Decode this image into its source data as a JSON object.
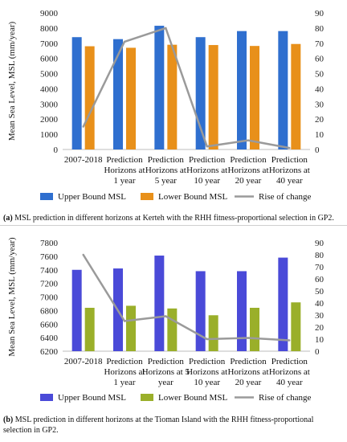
{
  "chart_data": [
    {
      "id": "a",
      "type": "bar+line",
      "categories": [
        [
          "2007-2018"
        ],
        [
          "Prediction",
          "Horizons at",
          "1 year"
        ],
        [
          "Prediction",
          "Horizons at",
          "5 year"
        ],
        [
          "Prediction",
          "Horizons at",
          "10 year"
        ],
        [
          "Prediction",
          "Horizons at",
          "20 year"
        ],
        [
          "Prediction",
          "Horizons at",
          "40 year"
        ]
      ],
      "ylabel": "Mean Sea Level, MSL (mm/year)",
      "ylim": [
        0,
        9000
      ],
      "yticks": [
        0,
        1000,
        2000,
        3000,
        4000,
        5000,
        6000,
        7000,
        8000,
        9000
      ],
      "y2lim": [
        0,
        90
      ],
      "y2ticks": [
        0,
        10,
        20,
        30,
        40,
        50,
        60,
        70,
        80,
        90
      ],
      "series": [
        {
          "name": "Upper Bound  MSL",
          "kind": "bar",
          "axis": "left",
          "color": "#2f6fcf",
          "values": [
            7400,
            7270,
            8150,
            7400,
            7800,
            7800
          ]
        },
        {
          "name": "Lower Bound MSL",
          "kind": "bar",
          "axis": "left",
          "color": "#e8901a",
          "values": [
            6800,
            6700,
            6900,
            6880,
            6820,
            6950
          ]
        },
        {
          "name": "Rise of change",
          "kind": "line",
          "axis": "right",
          "color": "#9a9a9a",
          "values": [
            15,
            71,
            80,
            2,
            6,
            1
          ]
        }
      ],
      "caption_label": "(a)",
      "caption_text": "MSL prediction in different horizons at Kerteh with the RHH fitness-proportional selection in GP2."
    },
    {
      "id": "b",
      "type": "bar+line",
      "categories": [
        [
          "2007-2018"
        ],
        [
          "Prediction",
          "Horizons at",
          "1 year"
        ],
        [
          "Prediction",
          "Horizons at 5",
          "year"
        ],
        [
          "Prediction",
          "Horizons at",
          "10 year"
        ],
        [
          "Prediction",
          "Horizons at",
          "20 year"
        ],
        [
          "Prediction",
          "Horizons at",
          "40 year"
        ]
      ],
      "ylabel": "Mean Sea Level, MSL (mm/year)",
      "ylim": [
        6200,
        7800
      ],
      "yticks": [
        6200,
        6400,
        6600,
        6800,
        7000,
        7200,
        7400,
        7600,
        7800
      ],
      "y2lim": [
        0,
        90
      ],
      "y2ticks": [
        0,
        10,
        20,
        30,
        40,
        50,
        60,
        70,
        80,
        90
      ],
      "series": [
        {
          "name": "Upper Bound  MSL",
          "kind": "bar",
          "axis": "left",
          "color": "#4a4ad8",
          "values": [
            7400,
            7420,
            7610,
            7380,
            7380,
            7580
          ]
        },
        {
          "name": "Lower Bound MSL",
          "kind": "bar",
          "axis": "left",
          "color": "#9aaf2a",
          "values": [
            6840,
            6870,
            6830,
            6730,
            6840,
            6920
          ]
        },
        {
          "name": "Rise of change",
          "kind": "line",
          "axis": "right",
          "color": "#9a9a9a",
          "values": [
            80,
            25,
            29,
            10,
            11,
            9
          ]
        }
      ],
      "caption_label": "(b)",
      "caption_text": "MSL prediction in different horizons at the Tioman Island with the RHH fitness-proportional selection in GP2."
    }
  ]
}
